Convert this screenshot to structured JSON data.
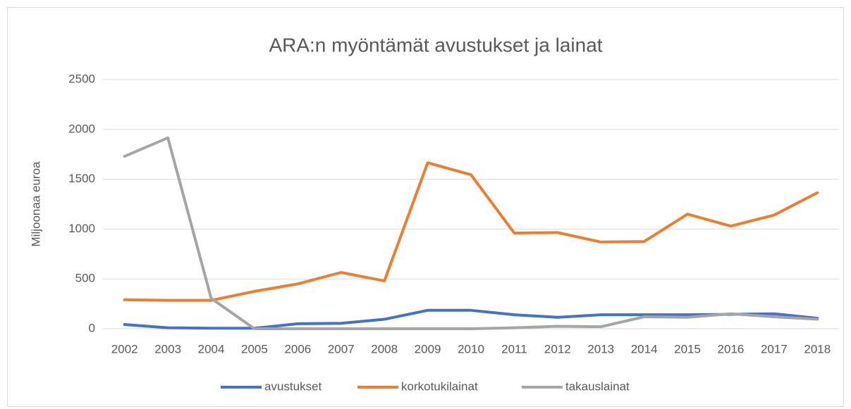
{
  "chart_data": {
    "type": "line",
    "title": "ARA:n myöntämät avustukset ja lainat",
    "y_label": "Miljoonaa euroa",
    "categories": [
      "2002",
      "2003",
      "2004",
      "2005",
      "2006",
      "2007",
      "2008",
      "2009",
      "2010",
      "2011",
      "2012",
      "2013",
      "2014",
      "2015",
      "2016",
      "2017",
      "2018"
    ],
    "series": [
      {
        "name": "avustukset",
        "color": "#4472c4",
        "values": [
          42,
          10,
          5,
          5,
          50,
          55,
          95,
          185,
          185,
          140,
          115,
          140,
          140,
          140,
          145,
          150,
          105
        ]
      },
      {
        "name": "korkotukilainat",
        "color": "#ed7d31",
        "values": [
          290,
          285,
          285,
          375,
          450,
          565,
          480,
          1665,
          1545,
          960,
          965,
          870,
          875,
          1150,
          1030,
          1140,
          1365
        ]
      },
      {
        "name": "takauslainat",
        "color": "#a5a5a5",
        "values": [
          1730,
          1915,
          305,
          0,
          0,
          0,
          0,
          0,
          0,
          10,
          25,
          20,
          120,
          115,
          150,
          120,
          95
        ]
      }
    ],
    "ylim": [
      0,
      2500
    ],
    "yticks": [
      0,
      500,
      1000,
      1500,
      2000,
      2500
    ],
    "grid": true,
    "legend": "bottom"
  }
}
